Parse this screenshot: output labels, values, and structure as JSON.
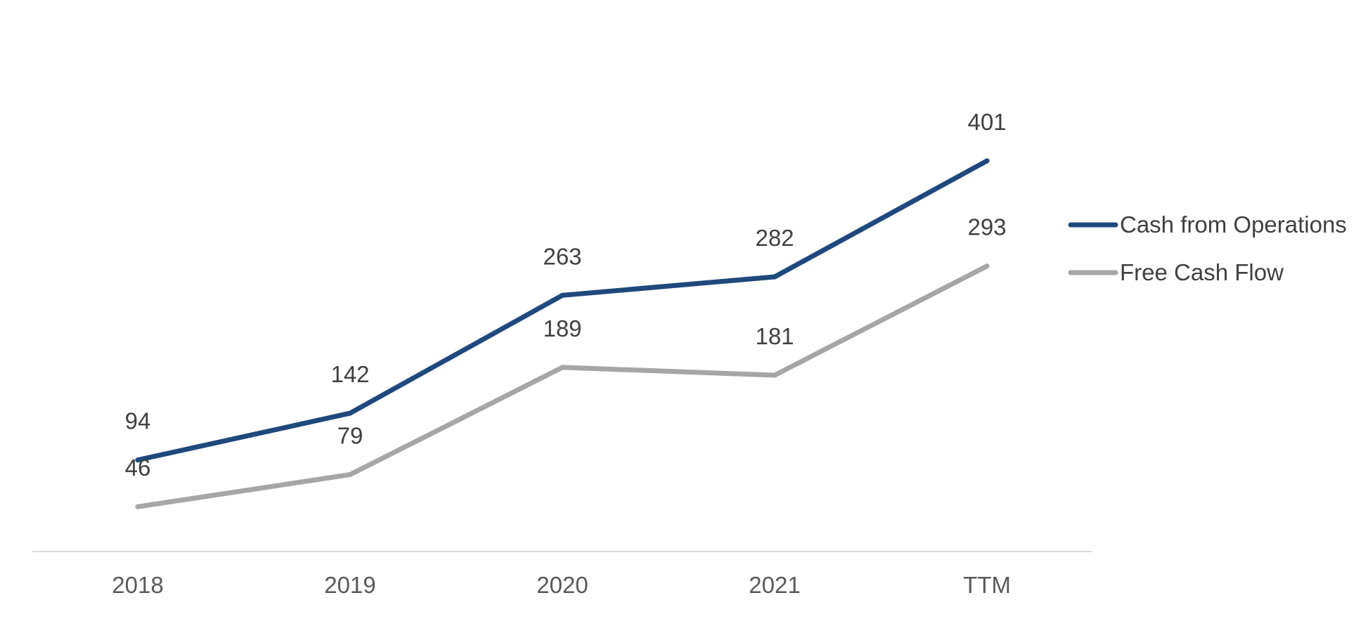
{
  "chart_data": {
    "type": "line",
    "title": "",
    "xlabel": "",
    "ylabel": "",
    "categories": [
      "2018",
      "2019",
      "2020",
      "2021",
      "TTM"
    ],
    "ylim": [
      0,
      500
    ],
    "grid": false,
    "legend_position": "right",
    "series": [
      {
        "name": "Cash from Operations",
        "color": "#1F497D",
        "values": [
          94,
          142,
          263,
          282,
          401
        ]
      },
      {
        "name": "Free Cash Flow",
        "color": "#A6A6A6",
        "values": [
          46,
          79,
          189,
          181,
          293
        ]
      }
    ]
  }
}
